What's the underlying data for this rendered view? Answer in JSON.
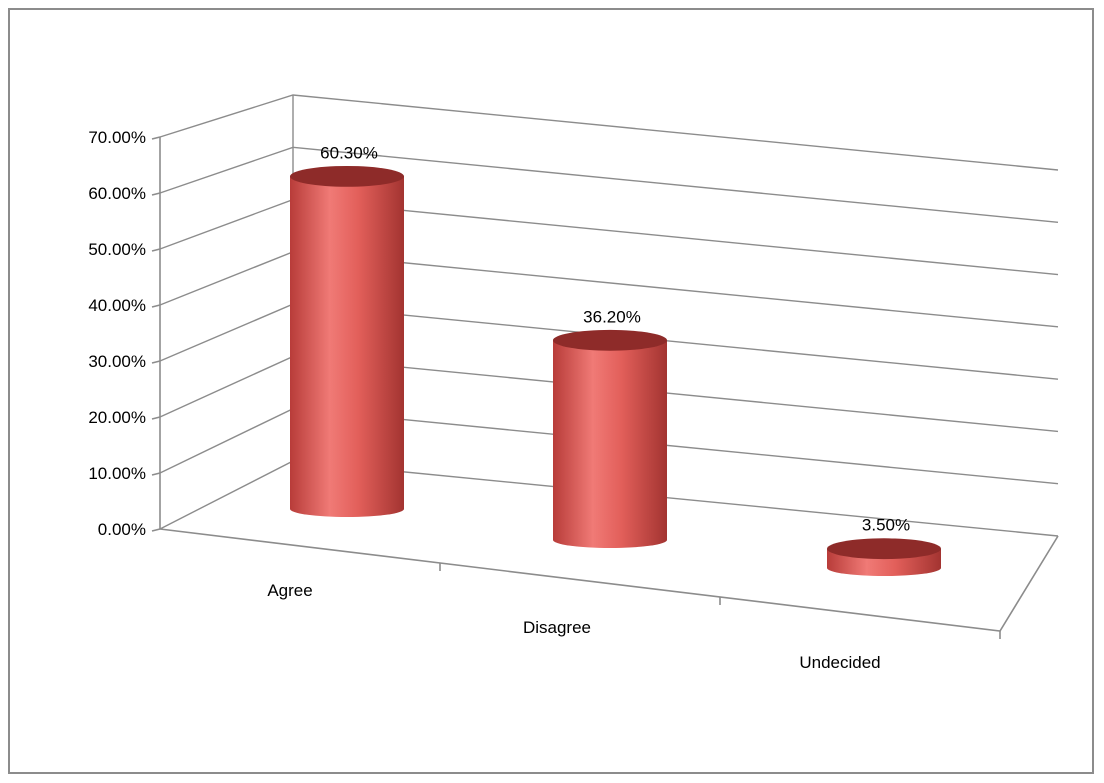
{
  "chart_data": {
    "type": "bar",
    "style": "3d-cylinder",
    "categories": [
      "Agree",
      "Disagree",
      "Undecided"
    ],
    "values": [
      60.3,
      36.2,
      3.5
    ],
    "data_labels": [
      "60.30%",
      "36.20%",
      "3.50%"
    ],
    "y_ticks": [
      "0.00%",
      "10.00%",
      "20.00%",
      "30.00%",
      "40.00%",
      "50.00%",
      "60.00%",
      "70.00%"
    ],
    "ylim": [
      0,
      70
    ],
    "y_step": 10,
    "grid": true,
    "legend": "none",
    "title": "",
    "xlabel": "",
    "ylabel": "",
    "colors": {
      "bar_main": "#d9534f",
      "bar_light": "#f07a76",
      "bar_dark": "#8e2b29",
      "grid": "#8c8c8c"
    }
  }
}
